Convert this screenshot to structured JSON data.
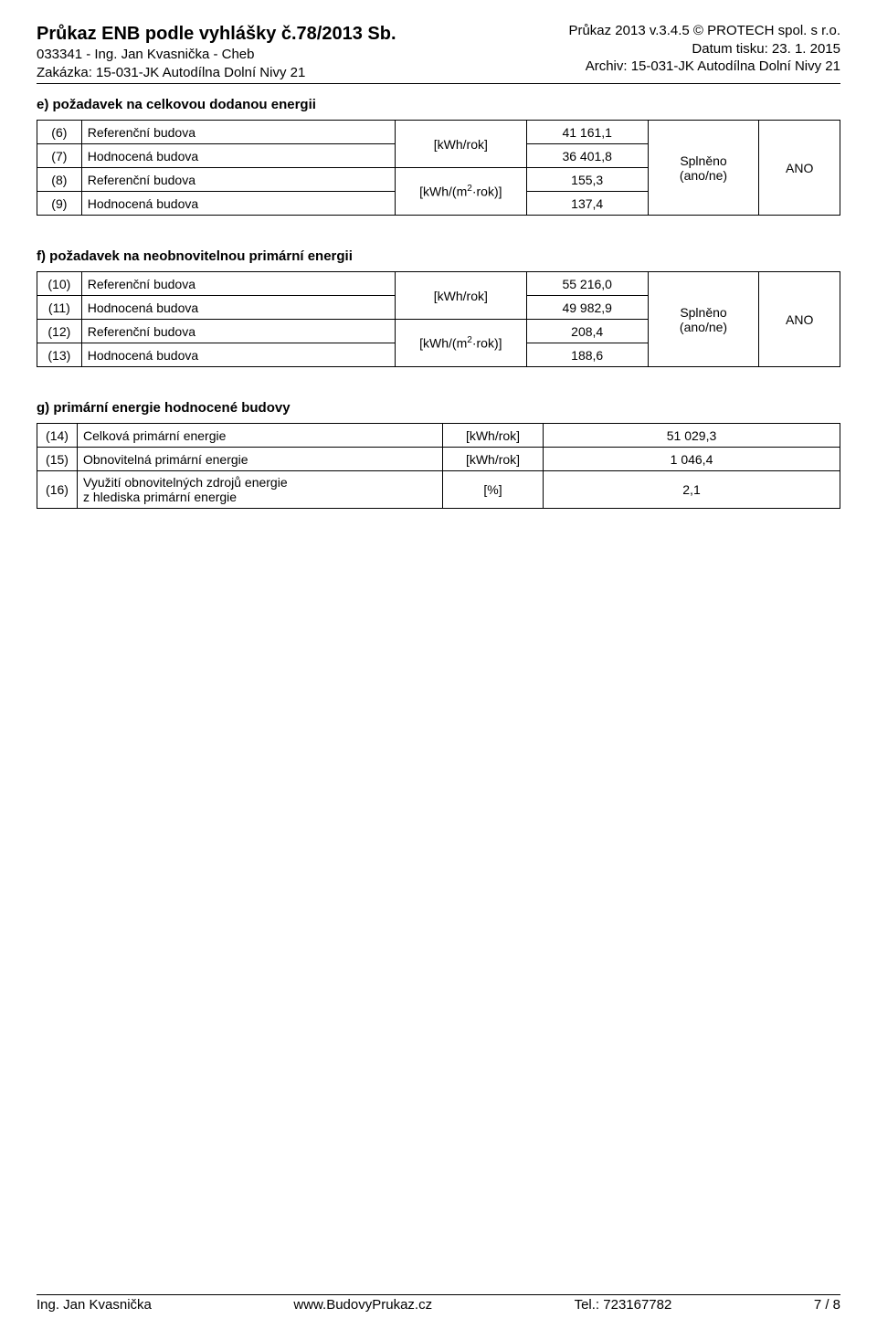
{
  "header": {
    "left": {
      "title": "Průkaz ENB podle vyhlášky č.78/2013 Sb.",
      "line2": "033341 - Ing. Jan Kvasnička - Cheb",
      "line3": "Zakázka: 15-031-JK Autodílna Dolní Nivy 21"
    },
    "right": {
      "line1": "Průkaz 2013 v.3.4.5 © PROTECH spol. s r.o.",
      "line2": "Datum tisku: 23. 1. 2015",
      "line3": "Archiv: 15-031-JK Autodílna Dolní Nivy 21"
    }
  },
  "section_e": {
    "title": "e) požadavek na celkovou dodanou energii",
    "rows": [
      {
        "n": "(6)",
        "label": "Referenční budova",
        "val": "41 161,1"
      },
      {
        "n": "(7)",
        "label": "Hodnocená budova",
        "val": "36 401,8"
      },
      {
        "n": "(8)",
        "label": "Referenční budova",
        "val": "155,3"
      },
      {
        "n": "(9)",
        "label": "Hodnocená budova",
        "val": "137,4"
      }
    ],
    "unit1": "[kWh/rok]",
    "unit2_prefix": "[kWh/(m",
    "unit2_sup": "2",
    "unit2_suffix": "·rok)]",
    "splneno_l1": "Splněno",
    "splneno_l2": "(ano/ne)",
    "result": "ANO"
  },
  "section_f": {
    "title": "f) požadavek na neobnovitelnou primární energii",
    "rows": [
      {
        "n": "(10)",
        "label": "Referenční budova",
        "val": "55 216,0"
      },
      {
        "n": "(11)",
        "label": "Hodnocená budova",
        "val": "49 982,9"
      },
      {
        "n": "(12)",
        "label": "Referenční budova",
        "val": "208,4"
      },
      {
        "n": "(13)",
        "label": "Hodnocená budova",
        "val": "188,6"
      }
    ],
    "unit1": "[kWh/rok]",
    "unit2_prefix": "[kWh/(m",
    "unit2_sup": "2",
    "unit2_suffix": "·rok)]",
    "splneno_l1": "Splněno",
    "splneno_l2": "(ano/ne)",
    "result": "ANO"
  },
  "section_g": {
    "title": "g) primární energie hodnocené budovy",
    "rows": [
      {
        "n": "(14)",
        "label": "Celková primární energie",
        "unit": "[kWh/rok]",
        "val": "51 029,3"
      },
      {
        "n": "(15)",
        "label": "Obnovitelná primární energie",
        "unit": "[kWh/rok]",
        "val": "1 046,4"
      },
      {
        "n": "(16)",
        "label_l1": "Využití obnovitelných zdrojů energie",
        "label_l2": "z hlediska primární energie",
        "unit": "[%]",
        "val": "2,1"
      }
    ]
  },
  "footer": {
    "left": "Ing. Jan Kvasnička",
    "center": "www.BudovyPrukaz.cz",
    "right_label": "Tel.: 723167782",
    "page": "7 / 8"
  }
}
